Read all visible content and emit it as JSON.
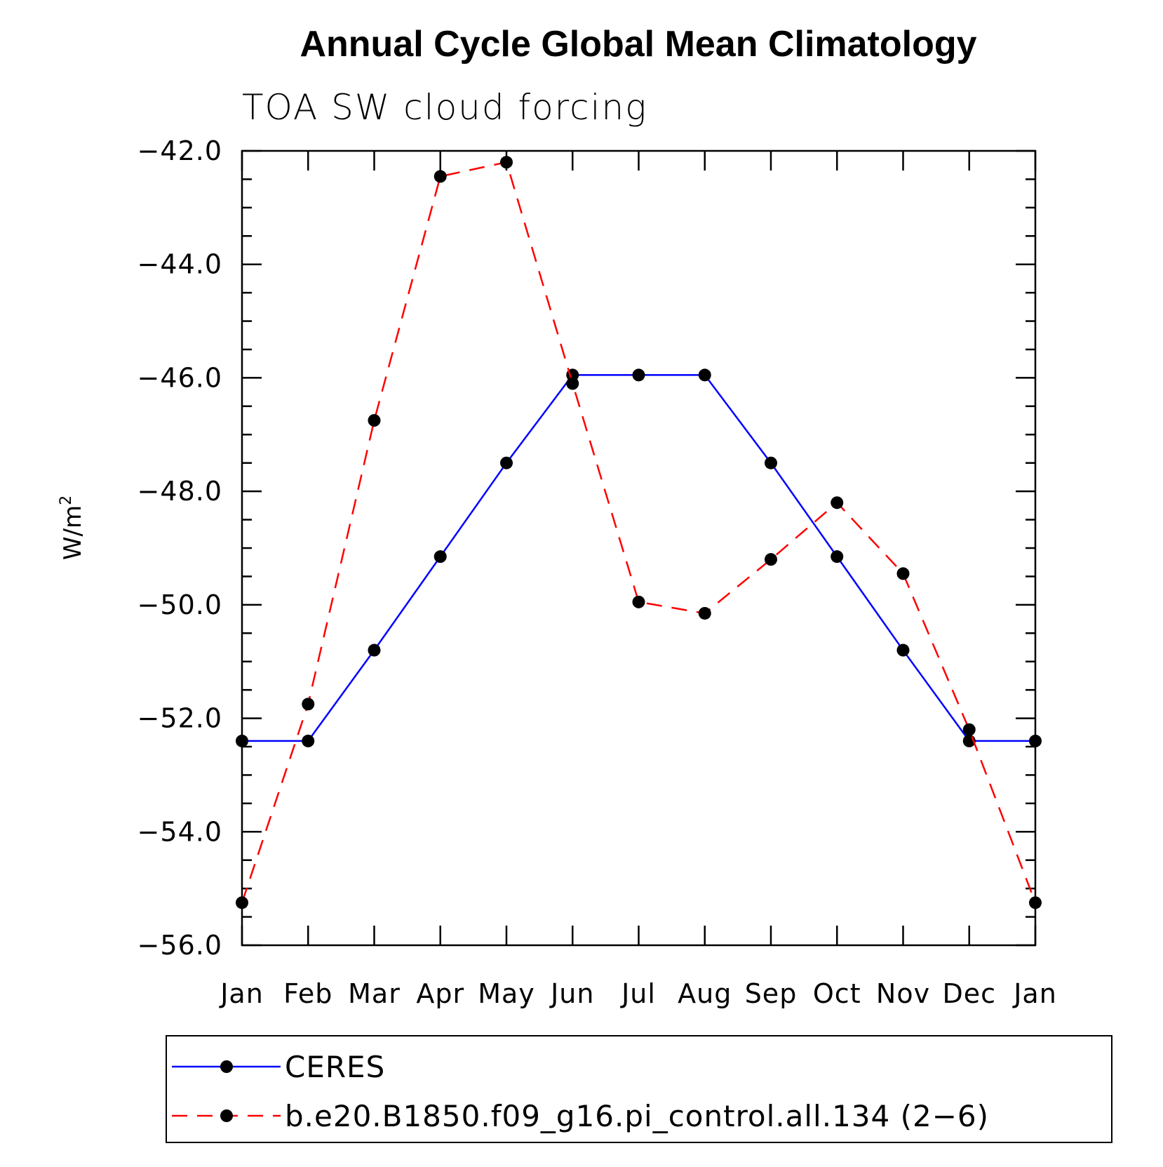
{
  "chart_data": {
    "type": "line",
    "title": "Annual Cycle Global Mean Climatology",
    "subtitle": "TOA SW cloud forcing",
    "ylabel_base": "W/m",
    "ylabel_sup": "2",
    "categories": [
      "Jan",
      "Feb",
      "Mar",
      "Apr",
      "May",
      "Jun",
      "Jul",
      "Aug",
      "Sep",
      "Oct",
      "Nov",
      "Dec",
      "Jan"
    ],
    "ylim": [
      -56.0,
      -42.0
    ],
    "yticks": [
      -42.0,
      -44.0,
      -46.0,
      -48.0,
      -50.0,
      -52.0,
      -54.0,
      -56.0
    ],
    "ytick_labels": [
      "−42.0",
      "−44.0",
      "−46.0",
      "−48.0",
      "−50.0",
      "−52.0",
      "−54.0",
      "−56.0"
    ],
    "grid": false,
    "legend_position": "bottom",
    "series": [
      {
        "name": "CERES",
        "color": "#0000ff",
        "dash": "solid",
        "marker": "filled-circle",
        "values": [
          -52.4,
          -52.4,
          -50.8,
          -49.15,
          -47.5,
          -45.95,
          -45.95,
          -45.95,
          -47.5,
          -49.15,
          -50.8,
          -52.4,
          -52.4
        ]
      },
      {
        "name": "b.e20.B1850.f09_g16.pi_control.all.134 (2−6)",
        "color": "#ff0000",
        "dash": "dashed",
        "marker": "filled-circle",
        "values": [
          -55.25,
          -51.75,
          -46.75,
          -42.45,
          -42.2,
          -46.1,
          -49.95,
          -50.15,
          -49.2,
          -48.2,
          -49.45,
          -52.2,
          -55.25
        ]
      }
    ]
  }
}
